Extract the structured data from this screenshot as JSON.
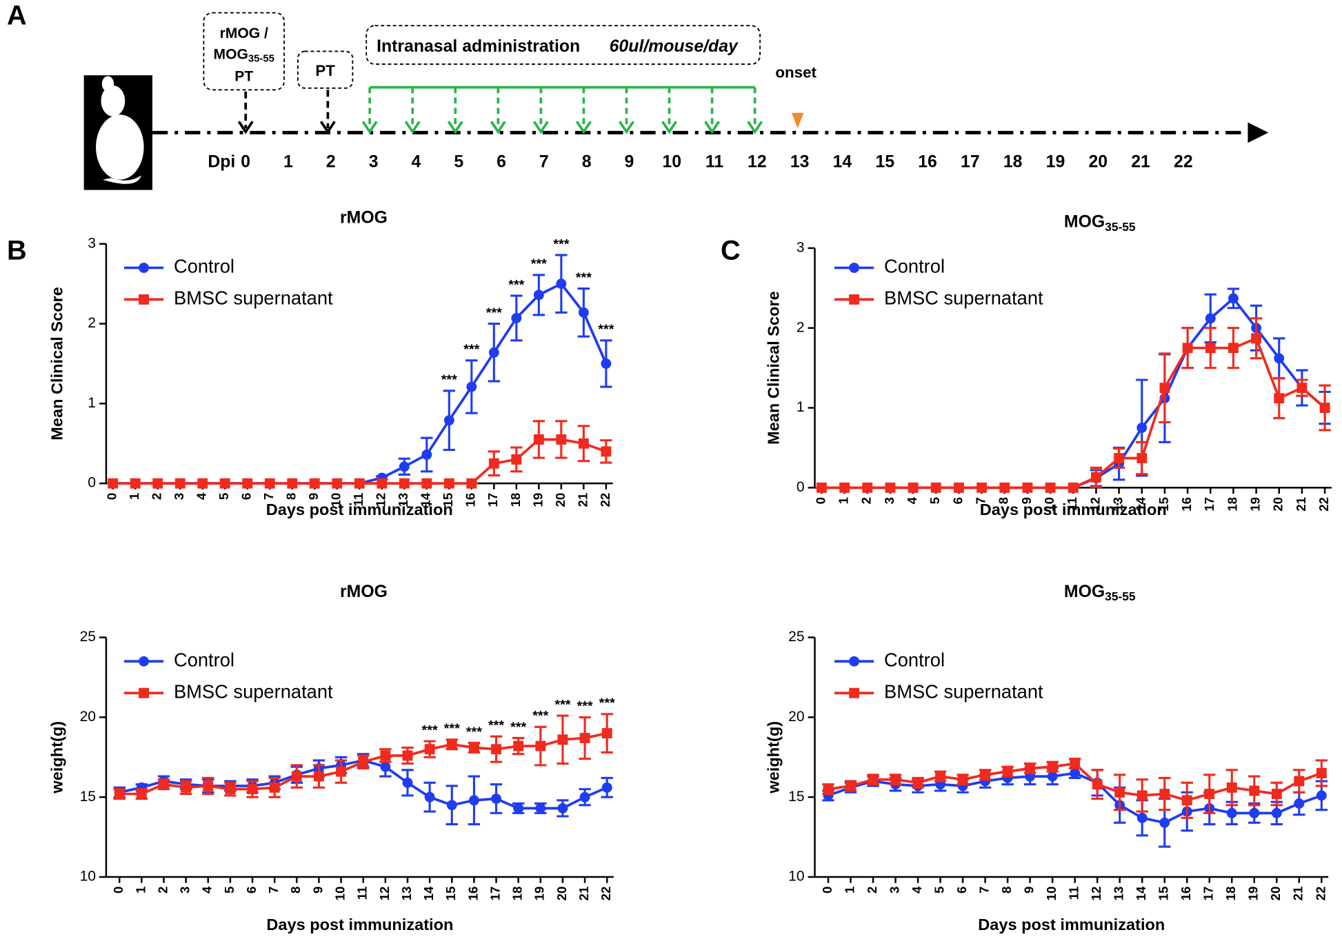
{
  "figure": {
    "panels": [
      "A",
      "B",
      "C"
    ],
    "timeline": {
      "box1": {
        "line1": "rMOG /",
        "line2": "MOG",
        "line2_sub": "35-55",
        "line3": "PT"
      },
      "box2": "PT",
      "intranasal": "Intranasal administration",
      "dose": "60ul/mouse/day",
      "onset": "onset",
      "dpi": "Dpi",
      "days": [
        0,
        1,
        2,
        3,
        4,
        5,
        6,
        7,
        8,
        9,
        10,
        11,
        12,
        13,
        14,
        15,
        16,
        17,
        18,
        19,
        20,
        21,
        22
      ]
    }
  },
  "chart_data": [
    {
      "type": "line",
      "title": "rMOG",
      "xlabel": "Days post immunization",
      "ylabel": "Mean Clinical Score",
      "x": [
        0,
        1,
        2,
        3,
        4,
        5,
        6,
        7,
        8,
        9,
        10,
        11,
        12,
        13,
        14,
        15,
        16,
        17,
        18,
        19,
        20,
        21,
        22
      ],
      "xticks": [
        0,
        1,
        2,
        3,
        4,
        5,
        6,
        7,
        8,
        9,
        10,
        11,
        12,
        13,
        14,
        15,
        16,
        17,
        18,
        19,
        20,
        21,
        22
      ],
      "xlim": [
        -0.3,
        22.3
      ],
      "ylim": [
        0,
        3
      ],
      "yticks": [
        0,
        1,
        2,
        3
      ],
      "series": [
        {
          "name": "Control",
          "color": "#1f3cf0",
          "marker": "circle",
          "values": [
            0,
            0,
            0,
            0,
            0,
            0,
            0,
            0,
            0,
            0,
            0,
            0,
            0.07,
            0.21,
            0.36,
            0.79,
            1.21,
            1.64,
            2.07,
            2.36,
            2.5,
            2.14,
            1.5
          ],
          "errors": [
            0,
            0,
            0,
            0,
            0,
            0,
            0,
            0,
            0,
            0,
            0,
            0,
            0.02,
            0.1,
            0.21,
            0.37,
            0.33,
            0.36,
            0.28,
            0.25,
            0.36,
            0.3,
            0.29
          ]
        },
        {
          "name": "BMSC supernatant",
          "color": "#f02a1e",
          "marker": "square",
          "values": [
            0,
            0,
            0,
            0,
            0,
            0,
            0,
            0,
            0,
            0,
            0,
            0,
            0,
            0,
            0,
            0,
            0,
            0.25,
            0.3,
            0.55,
            0.55,
            0.5,
            0.4
          ],
          "errors": [
            0,
            0,
            0,
            0,
            0,
            0,
            0,
            0,
            0,
            0,
            0,
            0,
            0,
            0,
            0,
            0,
            0,
            0.15,
            0.15,
            0.23,
            0.23,
            0.22,
            0.14
          ]
        }
      ],
      "sig_labels": [
        null,
        null,
        null,
        null,
        null,
        null,
        null,
        null,
        null,
        null,
        null,
        null,
        null,
        null,
        null,
        "***",
        "***",
        "***",
        "***",
        "***",
        "***",
        "***",
        "***"
      ]
    },
    {
      "type": "line",
      "title": "MOG",
      "title_sub": "35-55",
      "xlabel": "Days post immunization",
      "ylabel": "Mean Clinical Score",
      "x": [
        0,
        1,
        2,
        3,
        4,
        5,
        6,
        7,
        8,
        9,
        10,
        11,
        12,
        13,
        14,
        15,
        16,
        17,
        18,
        19,
        20,
        21,
        22
      ],
      "xticks": [
        0,
        1,
        2,
        3,
        4,
        5,
        6,
        7,
        8,
        9,
        10,
        11,
        12,
        13,
        14,
        15,
        16,
        17,
        18,
        19,
        20,
        21,
        22
      ],
      "xlim": [
        -0.3,
        22.3
      ],
      "ylim": [
        0,
        3
      ],
      "yticks": [
        0,
        1,
        2,
        3
      ],
      "series": [
        {
          "name": "Control",
          "color": "#1f3cf0",
          "marker": "circle",
          "values": [
            0,
            0,
            0,
            0,
            0,
            0,
            0,
            0,
            0,
            0,
            0,
            0,
            0.12,
            0.3,
            0.75,
            1.12,
            1.75,
            2.12,
            2.37,
            2.0,
            1.62,
            1.25,
            1.0
          ],
          "errors": [
            0,
            0,
            0,
            0,
            0,
            0,
            0,
            0,
            0,
            0,
            0,
            0,
            0.1,
            0.2,
            0.6,
            0.55,
            0.25,
            0.3,
            0.12,
            0.28,
            0.25,
            0.22,
            0.2
          ]
        },
        {
          "name": "BMSC supernatant",
          "color": "#f02a1e",
          "marker": "square",
          "values": [
            0,
            0,
            0,
            0,
            0,
            0,
            0,
            0,
            0,
            0,
            0,
            0,
            0.13,
            0.37,
            0.37,
            1.25,
            1.75,
            1.75,
            1.75,
            1.87,
            1.12,
            1.25,
            1.0
          ],
          "errors": [
            0,
            0,
            0,
            0,
            0,
            0,
            0,
            0,
            0,
            0,
            0,
            0,
            0.12,
            0.12,
            0.2,
            0.43,
            0.25,
            0.25,
            0.25,
            0.25,
            0.25,
            0.1,
            0.28
          ]
        }
      ]
    },
    {
      "type": "line",
      "title": "rMOG",
      "xlabel": "Days post immunization",
      "ylabel": "weight(g)",
      "x": [
        0,
        1,
        2,
        3,
        4,
        5,
        6,
        7,
        8,
        9,
        10,
        11,
        12,
        13,
        14,
        15,
        16,
        17,
        18,
        19,
        20,
        21,
        22
      ],
      "xticks": [
        0,
        1,
        2,
        3,
        4,
        5,
        6,
        7,
        8,
        9,
        10,
        11,
        12,
        13,
        14,
        15,
        16,
        17,
        18,
        19,
        20,
        21,
        22
      ],
      "xlim": [
        -0.6,
        22.3
      ],
      "ylim": [
        10,
        25
      ],
      "yticks": [
        10,
        15,
        20,
        25
      ],
      "series": [
        {
          "name": "Control",
          "color": "#1f3cf0",
          "marker": "circle",
          "values": [
            15.3,
            15.6,
            16.0,
            15.8,
            15.7,
            15.7,
            15.7,
            15.9,
            16.4,
            16.8,
            17.0,
            17.3,
            16.9,
            15.9,
            15.0,
            14.5,
            14.8,
            14.9,
            14.3,
            14.3,
            14.3,
            15.0,
            15.6
          ],
          "errors": [
            0.3,
            0.2,
            0.3,
            0.3,
            0.4,
            0.3,
            0.4,
            0.4,
            0.5,
            0.5,
            0.5,
            0.4,
            0.6,
            0.8,
            0.9,
            1.2,
            1.5,
            0.9,
            0.3,
            0.3,
            0.5,
            0.5,
            0.6
          ]
        },
        {
          "name": "BMSC supernatant",
          "color": "#f02a1e",
          "marker": "square",
          "values": [
            15.2,
            15.2,
            15.8,
            15.6,
            15.7,
            15.5,
            15.5,
            15.6,
            16.3,
            16.3,
            16.6,
            17.2,
            17.6,
            17.6,
            18.0,
            18.3,
            18.1,
            18.0,
            18.2,
            18.2,
            18.6,
            18.7,
            19.0
          ],
          "errors": [
            0.3,
            0.3,
            0.3,
            0.4,
            0.5,
            0.4,
            0.5,
            0.6,
            0.7,
            0.7,
            0.7,
            0.4,
            0.4,
            0.5,
            0.5,
            0.3,
            0.3,
            0.8,
            0.5,
            1.2,
            1.5,
            1.3,
            1.2
          ]
        }
      ],
      "sig_labels": [
        null,
        null,
        null,
        null,
        null,
        null,
        null,
        null,
        null,
        null,
        null,
        null,
        null,
        null,
        "***",
        "***",
        "***",
        "***",
        "***",
        "***",
        "***",
        "***",
        "***"
      ]
    },
    {
      "type": "line",
      "title": "MOG",
      "title_sub": "35-55",
      "xlabel": "Days post immunization",
      "ylabel": "weight(g)",
      "x": [
        0,
        1,
        2,
        3,
        4,
        5,
        6,
        7,
        8,
        9,
        10,
        11,
        12,
        13,
        14,
        15,
        16,
        17,
        18,
        19,
        20,
        21,
        22
      ],
      "xticks": [
        0,
        1,
        2,
        3,
        4,
        5,
        6,
        7,
        8,
        9,
        10,
        11,
        12,
        13,
        14,
        15,
        16,
        17,
        18,
        19,
        20,
        21,
        22
      ],
      "xlim": [
        -0.6,
        22.3
      ],
      "ylim": [
        10,
        25
      ],
      "yticks": [
        10,
        15,
        20,
        25
      ],
      "series": [
        {
          "name": "Control",
          "color": "#1f3cf0",
          "marker": "circle",
          "values": [
            15.1,
            15.6,
            16.0,
            15.8,
            15.7,
            15.8,
            15.7,
            16.0,
            16.2,
            16.3,
            16.3,
            16.5,
            15.9,
            14.5,
            13.7,
            13.4,
            14.1,
            14.3,
            14.0,
            14.0,
            14.0,
            14.6,
            15.1
          ],
          "errors": [
            0.3,
            0.3,
            0.3,
            0.4,
            0.4,
            0.4,
            0.4,
            0.4,
            0.4,
            0.5,
            0.5,
            0.3,
            0.8,
            1.1,
            1.1,
            1.5,
            1.2,
            1.0,
            0.7,
            0.6,
            0.7,
            0.7,
            0.9
          ]
        },
        {
          "name": "BMSC supernatant",
          "color": "#f02a1e",
          "marker": "square",
          "values": [
            15.5,
            15.7,
            16.1,
            16.1,
            15.9,
            16.3,
            16.1,
            16.4,
            16.6,
            16.8,
            16.9,
            17.1,
            15.8,
            15.3,
            15.1,
            15.2,
            14.8,
            15.2,
            15.6,
            15.4,
            15.2,
            16.0,
            16.5
          ],
          "errors": [
            0.3,
            0.3,
            0.3,
            0.3,
            0.3,
            0.3,
            0.3,
            0.3,
            0.3,
            0.3,
            0.3,
            0.3,
            0.9,
            1.1,
            1.0,
            1.0,
            1.1,
            1.2,
            1.1,
            0.9,
            0.7,
            0.7,
            0.8
          ]
        }
      ]
    }
  ]
}
